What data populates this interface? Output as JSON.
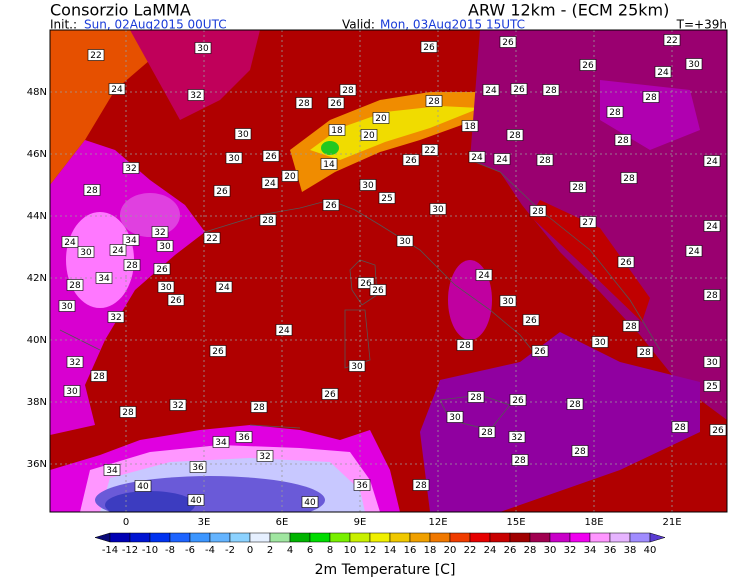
{
  "header": {
    "title": "Consorzio LaMMA",
    "model": "ARW 12km - (ECM 25km)",
    "init_label": "Init.:",
    "init": "Sun, 02Aug2015 00UTC",
    "valid_label": "Valid:",
    "valid": "Mon, 03Aug2015 15UTC",
    "lead": "T=+39h"
  },
  "map": {
    "lat_labels": [
      "48N",
      "46N",
      "44N",
      "42N",
      "40N",
      "38N",
      "36N"
    ],
    "lon_labels": [
      "0",
      "3E",
      "6E",
      "9E",
      "12E",
      "15E",
      "18E",
      "21E"
    ],
    "station_values": [
      22,
      30,
      24,
      32,
      30,
      30,
      26,
      24,
      20,
      32,
      28,
      26,
      28,
      32,
      34,
      22,
      24,
      30,
      24,
      30,
      28,
      26,
      34,
      28,
      30,
      24,
      26,
      32,
      30,
      24,
      26,
      32,
      28,
      30,
      30,
      26,
      28,
      32,
      28,
      34,
      36,
      32,
      36,
      34,
      40,
      40,
      40,
      36,
      28,
      28,
      28,
      26,
      18,
      20,
      14,
      30,
      25,
      26,
      30,
      30,
      26,
      26,
      24,
      30,
      26,
      28,
      26,
      26,
      28,
      30,
      28,
      32,
      28,
      28,
      28,
      26,
      26,
      28,
      24,
      26,
      26,
      28,
      28,
      24,
      30,
      22,
      28,
      28,
      24,
      24,
      28,
      28,
      24,
      28,
      28,
      28,
      27,
      24,
      24,
      26,
      28,
      28,
      30,
      28,
      30,
      25,
      26,
      28,
      22,
      18,
      20,
      26
    ]
  },
  "legend": {
    "title": "2m Temperature [C]",
    "ticks": [
      -14,
      -12,
      -10,
      -8,
      -6,
      -4,
      -2,
      0,
      2,
      4,
      6,
      8,
      10,
      12,
      14,
      16,
      18,
      20,
      22,
      24,
      26,
      28,
      30,
      32,
      34,
      36,
      38,
      40
    ],
    "colors": [
      "#0a0a78",
      "#0000b4",
      "#0014d2",
      "#0032f0",
      "#1e64ff",
      "#3c96ff",
      "#64b4ff",
      "#8cd2ff",
      "#e6f0ff",
      "#a0e6a0",
      "#00b400",
      "#00dc00",
      "#78f000",
      "#c8f000",
      "#f0f000",
      "#f0c800",
      "#f0a000",
      "#f07800",
      "#f03c00",
      "#e60000",
      "#c80000",
      "#a00000",
      "#a00050",
      "#c800c8",
      "#f000f0",
      "#ff96ff",
      "#e6b4ff",
      "#a08cff",
      "#5a3cd2"
    ]
  }
}
